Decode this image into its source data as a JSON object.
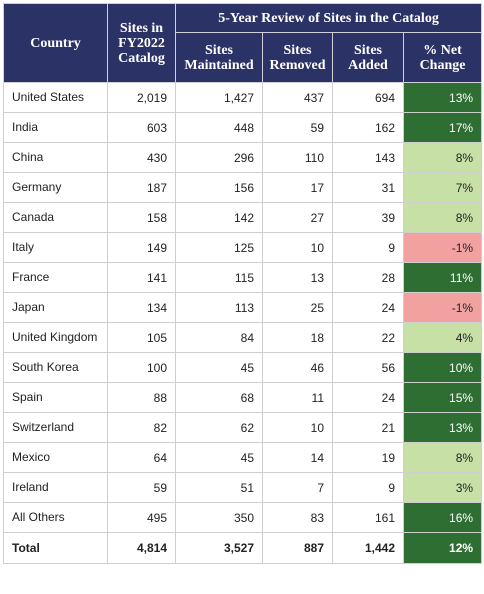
{
  "table": {
    "header": {
      "country": "Country",
      "fy2022": "Sites in FY2022 Catalog",
      "group": "5-Year Review of Sites in the Catalog",
      "maintained": "Sites Maintained",
      "removed": "Sites Removed",
      "added": "Sites Added",
      "change": "% Net Change"
    },
    "rows": [
      [
        "United States",
        "2,019",
        "1,427",
        "437",
        "694",
        "13%"
      ],
      [
        "India",
        "603",
        "448",
        "59",
        "162",
        "17%"
      ],
      [
        "China",
        "430",
        "296",
        "110",
        "143",
        "8%"
      ],
      [
        "Germany",
        "187",
        "156",
        "17",
        "31",
        "7%"
      ],
      [
        "Canada",
        "158",
        "142",
        "27",
        "39",
        "8%"
      ],
      [
        "Italy",
        "149",
        "125",
        "10",
        "9",
        "-1%"
      ],
      [
        "France",
        "141",
        "115",
        "13",
        "28",
        "11%"
      ],
      [
        "Japan",
        "134",
        "113",
        "25",
        "24",
        "-1%"
      ],
      [
        "United Kingdom",
        "105",
        "84",
        "18",
        "22",
        "4%"
      ],
      [
        "South Korea",
        "100",
        "45",
        "46",
        "56",
        "10%"
      ],
      [
        "Spain",
        "88",
        "68",
        "11",
        "24",
        "15%"
      ],
      [
        "Switzerland",
        "82",
        "62",
        "10",
        "21",
        "13%"
      ],
      [
        "Mexico",
        "64",
        "45",
        "14",
        "19",
        "8%"
      ],
      [
        "Ireland",
        "59",
        "51",
        "7",
        "9",
        "3%"
      ],
      [
        "All Others",
        "495",
        "350",
        "83",
        "161",
        "16%"
      ]
    ],
    "change_colors": [
      "#2f6e33",
      "#2f6e33",
      "#c6e0a6",
      "#c6e0a6",
      "#c6e0a6",
      "#f2a1a1",
      "#2f6e33",
      "#f2a1a1",
      "#c6e0a6",
      "#2f6e33",
      "#2f6e33",
      "#2f6e33",
      "#c6e0a6",
      "#c6e0a6",
      "#2f6e33"
    ],
    "total": [
      "Total",
      "4,814",
      "3,527",
      "887",
      "1,442",
      "12%"
    ],
    "total_color": "#2f6e33"
  }
}
